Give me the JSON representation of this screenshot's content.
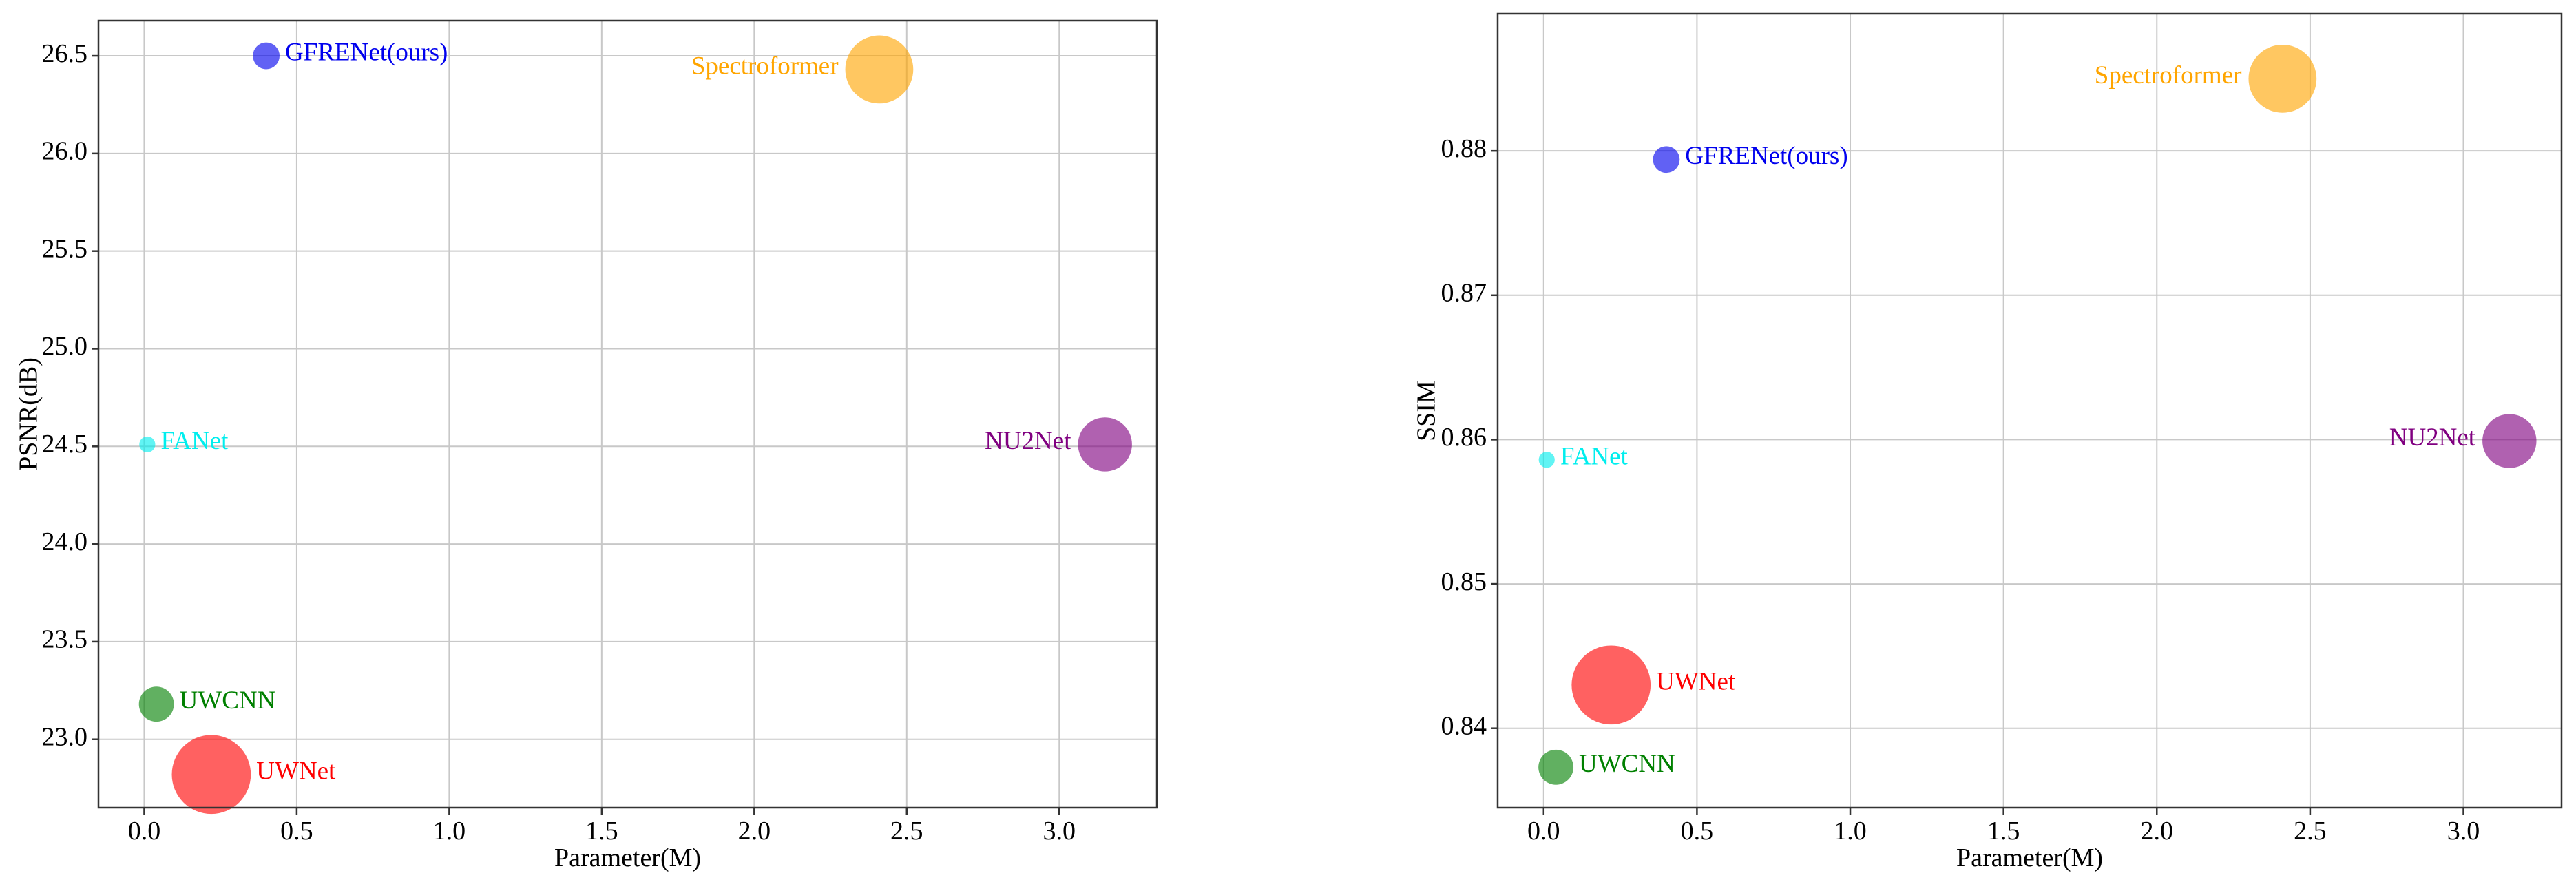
{
  "chart_data": [
    {
      "type": "scatter",
      "title": "",
      "xlabel": "Parameter(M)",
      "ylabel": "PSNR(dB)",
      "xlim": [
        -0.15,
        3.32
      ],
      "ylim": [
        22.65,
        26.68
      ],
      "grid": true,
      "x_ticks": [
        0.0,
        0.5,
        1.0,
        1.5,
        2.0,
        2.5,
        3.0
      ],
      "x_tick_labels": [
        "0.0",
        "0.5",
        "1.0",
        "1.5",
        "2.0",
        "2.5",
        "3.0"
      ],
      "y_ticks": [
        23.0,
        23.5,
        24.0,
        24.5,
        25.0,
        25.5,
        26.0,
        26.5
      ],
      "y_tick_labels": [
        "23.0",
        "23.5",
        "24.0",
        "24.5",
        "25.0",
        "25.5",
        "26.0",
        "26.5"
      ],
      "points": [
        {
          "name": "GFRENet(ours)",
          "x": 0.4,
          "y": 26.5,
          "size": 0.16,
          "color": "#0000ee",
          "label_side": "right"
        },
        {
          "name": "Spectroformer",
          "x": 2.41,
          "y": 26.43,
          "size": 2.41,
          "color": "#ffa500",
          "label_side": "left"
        },
        {
          "name": "FANet",
          "x": 0.01,
          "y": 24.51,
          "size": 0.01,
          "color": "#00eeee",
          "label_side": "right"
        },
        {
          "name": "NU2Net",
          "x": 3.15,
          "y": 24.51,
          "size": 1.35,
          "color": "#800080",
          "label_side": "left"
        },
        {
          "name": "UWCNN",
          "x": 0.04,
          "y": 23.18,
          "size": 0.4,
          "color": "#008000",
          "label_side": "right"
        },
        {
          "name": "UWNet",
          "x": 0.22,
          "y": 22.82,
          "size": 3.46,
          "color": "#ff0000",
          "label_side": "right"
        }
      ]
    },
    {
      "type": "scatter",
      "title": "",
      "xlabel": "Parameter(M)",
      "ylabel": "SSIM",
      "xlim": [
        -0.15,
        3.32
      ],
      "ylim": [
        0.8345,
        0.8895
      ],
      "grid": true,
      "x_ticks": [
        0.0,
        0.5,
        1.0,
        1.5,
        2.0,
        2.5,
        3.0
      ],
      "x_tick_labels": [
        "0.0",
        "0.5",
        "1.0",
        "1.5",
        "2.0",
        "2.5",
        "3.0"
      ],
      "y_ticks": [
        0.84,
        0.85,
        0.86,
        0.87,
        0.88
      ],
      "y_tick_labels": [
        "0.84",
        "0.85",
        "0.86",
        "0.87",
        "0.88"
      ],
      "points": [
        {
          "name": "Spectroformer",
          "x": 2.41,
          "y": 0.885,
          "size": 2.41,
          "color": "#ffa500",
          "label_side": "left"
        },
        {
          "name": "GFRENet(ours)",
          "x": 0.4,
          "y": 0.8794,
          "size": 0.16,
          "color": "#0000ee",
          "label_side": "right"
        },
        {
          "name": "NU2Net",
          "x": 3.15,
          "y": 0.8599,
          "size": 1.35,
          "color": "#800080",
          "label_side": "left"
        },
        {
          "name": "FANet",
          "x": 0.01,
          "y": 0.8586,
          "size": 0.01,
          "color": "#00eeee",
          "label_side": "right"
        },
        {
          "name": "UWNet",
          "x": 0.22,
          "y": 0.843,
          "size": 3.46,
          "color": "#ff0000",
          "label_side": "right"
        },
        {
          "name": "UWCNN",
          "x": 0.04,
          "y": 0.8373,
          "size": 0.4,
          "color": "#008000",
          "label_side": "right"
        }
      ]
    }
  ]
}
